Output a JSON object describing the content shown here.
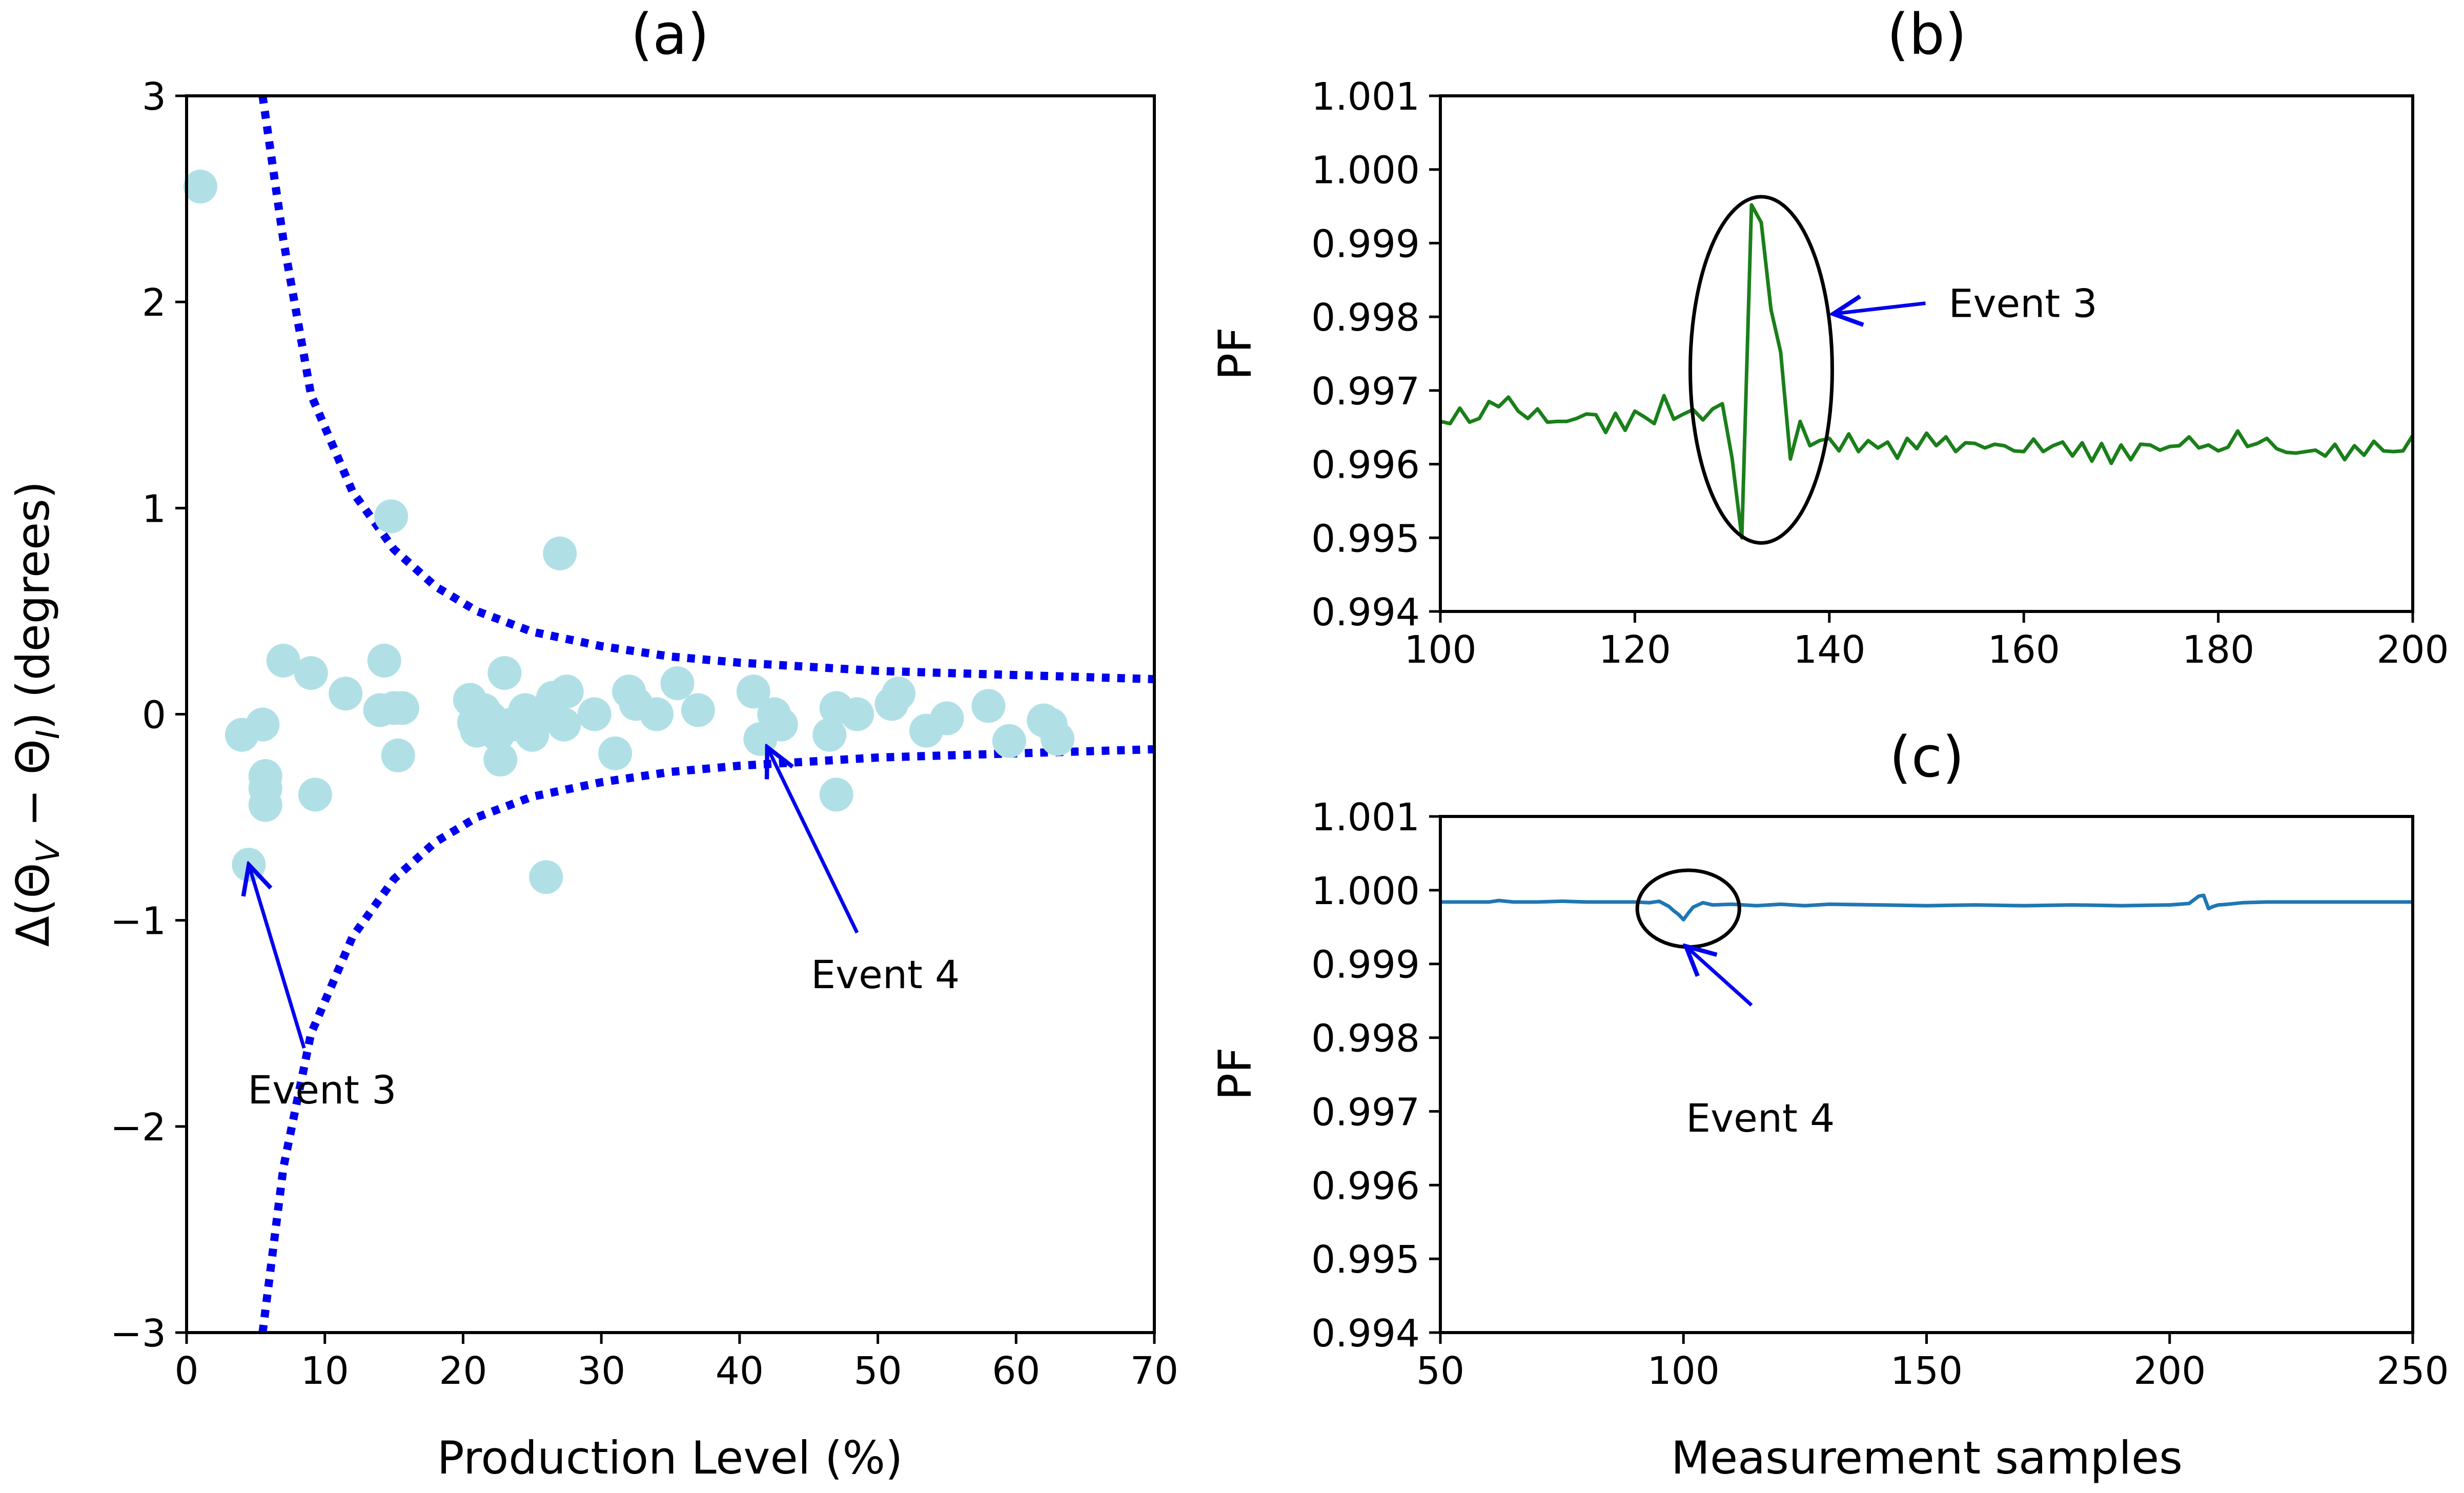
{
  "chart_data": [
    {
      "id": "a",
      "type": "scatter",
      "title": "(a)",
      "xlabel": "Production Level (%)",
      "ylabel": "Δ(Θ_V − Θ_I) (degrees)",
      "ylabel_parts": {
        "lead": "Δ(Θ",
        "sub_v": "V",
        "mid": " − Θ",
        "sub_i": "I",
        "tail": ") (degrees)"
      },
      "xlim": [
        0,
        70
      ],
      "ylim": [
        -3,
        3
      ],
      "xticks": [
        0,
        10,
        20,
        30,
        40,
        50,
        60,
        70
      ],
      "xtick_labels": [
        "0",
        "10",
        "20",
        "30",
        "40",
        "50",
        "60",
        "70"
      ],
      "yticks": [
        -3,
        -2,
        -1,
        0,
        1,
        2,
        3
      ],
      "ytick_labels": [
        "−3",
        "−2",
        "−1",
        "0",
        "1",
        "2",
        "3"
      ],
      "point_color": "#b0e0e6",
      "points": [
        [
          1,
          2.56
        ],
        [
          4,
          -0.1
        ],
        [
          4.5,
          -0.73
        ],
        [
          5.5,
          -0.05
        ],
        [
          5.7,
          -0.3
        ],
        [
          5.7,
          -0.36
        ],
        [
          5.7,
          -0.44
        ],
        [
          7,
          0.26
        ],
        [
          9,
          0.2
        ],
        [
          9.3,
          -0.39
        ],
        [
          11.5,
          0.1
        ],
        [
          14,
          0.02
        ],
        [
          14.3,
          0.26
        ],
        [
          14.8,
          0.96
        ],
        [
          15,
          0.03
        ],
        [
          15.3,
          -0.2
        ],
        [
          15.6,
          0.03
        ],
        [
          20.5,
          0.07
        ],
        [
          20.8,
          -0.04
        ],
        [
          21,
          -0.08
        ],
        [
          21.5,
          0.02
        ],
        [
          22,
          -0.02
        ],
        [
          22.5,
          -0.1
        ],
        [
          22.7,
          -0.22
        ],
        [
          23,
          0.2
        ],
        [
          23.5,
          -0.05
        ],
        [
          24,
          -0.05
        ],
        [
          24.5,
          0.02
        ],
        [
          25,
          -0.1
        ],
        [
          25.5,
          0.0
        ],
        [
          26,
          -0.79
        ],
        [
          26.5,
          0.08
        ],
        [
          27,
          0.78
        ],
        [
          27.3,
          -0.05
        ],
        [
          27.5,
          0.11
        ],
        [
          29.5,
          0.0
        ],
        [
          31,
          -0.19
        ],
        [
          32,
          0.11
        ],
        [
          32.5,
          0.05
        ],
        [
          34,
          0.0
        ],
        [
          35.5,
          0.15
        ],
        [
          37,
          0.02
        ],
        [
          41,
          0.11
        ],
        [
          41.5,
          -0.12
        ],
        [
          42.5,
          0.0
        ],
        [
          43,
          -0.05
        ],
        [
          46.5,
          -0.1
        ],
        [
          47,
          0.03
        ],
        [
          47,
          -0.39
        ],
        [
          48.5,
          0.0
        ],
        [
          51,
          0.05
        ],
        [
          51.5,
          0.1
        ],
        [
          53.5,
          -0.08
        ],
        [
          55,
          -0.02
        ],
        [
          58,
          0.04
        ],
        [
          59.5,
          -0.13
        ],
        [
          62,
          -0.03
        ],
        [
          62.5,
          -0.05
        ],
        [
          63,
          -0.12
        ]
      ],
      "bound_color": "#0000ee",
      "bound_upper": [
        [
          5.5,
          3.0
        ],
        [
          7,
          2.3
        ],
        [
          9,
          1.55
        ],
        [
          12,
          1.08
        ],
        [
          15,
          0.8
        ],
        [
          18,
          0.62
        ],
        [
          21,
          0.5
        ],
        [
          25,
          0.4
        ],
        [
          30,
          0.33
        ],
        [
          35,
          0.28
        ],
        [
          40,
          0.25
        ],
        [
          45,
          0.23
        ],
        [
          50,
          0.21
        ],
        [
          55,
          0.2
        ],
        [
          60,
          0.19
        ],
        [
          65,
          0.18
        ],
        [
          70,
          0.17
        ]
      ],
      "bound_lower": [
        [
          5.5,
          -3.0
        ],
        [
          7,
          -2.2
        ],
        [
          9,
          -1.55
        ],
        [
          12,
          -1.08
        ],
        [
          15,
          -0.8
        ],
        [
          18,
          -0.62
        ],
        [
          21,
          -0.5
        ],
        [
          25,
          -0.4
        ],
        [
          30,
          -0.33
        ],
        [
          35,
          -0.28
        ],
        [
          40,
          -0.25
        ],
        [
          45,
          -0.23
        ],
        [
          50,
          -0.21
        ],
        [
          55,
          -0.2
        ],
        [
          60,
          -0.19
        ],
        [
          65,
          -0.18
        ],
        [
          70,
          -0.17
        ]
      ],
      "annotations": [
        {
          "text": "Event 3",
          "target": [
            4.5,
            -0.73
          ],
          "text_anchor": [
            8.5,
            -1.62
          ]
        },
        {
          "text": "Event 4",
          "target": [
            42,
            -0.16
          ],
          "text_anchor": [
            48.5,
            -1.06
          ]
        }
      ]
    },
    {
      "id": "b",
      "type": "line",
      "title": "(b)",
      "xlabel": "",
      "ylabel": "PF",
      "xlim": [
        100,
        200
      ],
      "ylim": [
        0.994,
        1.001
      ],
      "xticks": [
        100,
        120,
        140,
        160,
        180,
        200
      ],
      "xtick_labels": [
        "100",
        "120",
        "140",
        "160",
        "180",
        "200"
      ],
      "yticks": [
        0.994,
        0.995,
        0.996,
        0.997,
        0.998,
        0.999,
        1.0,
        1.001
      ],
      "ytick_labels": [
        "0.994",
        "0.995",
        "0.996",
        "0.997",
        "0.998",
        "0.999",
        "1.000",
        "1.001"
      ],
      "line_color": "#1a7f1a",
      "x": [
        100,
        101,
        102,
        103,
        104,
        105,
        106,
        107,
        108,
        109,
        110,
        111,
        112,
        113,
        114,
        115,
        116,
        117,
        118,
        119,
        120,
        121,
        122,
        123,
        124,
        125,
        126,
        127,
        128,
        129,
        130,
        131,
        132,
        133,
        134,
        135,
        136,
        137,
        138,
        139,
        140,
        141,
        142,
        143,
        144,
        145,
        146,
        147,
        148,
        149,
        150,
        151,
        152,
        153,
        154,
        155,
        156,
        157,
        158,
        159,
        160,
        161,
        162,
        163,
        164,
        165,
        166,
        167,
        168,
        169,
        170,
        171,
        172,
        173,
        174,
        175,
        176,
        177,
        178,
        179,
        180,
        181,
        182,
        183,
        184,
        185,
        186,
        187,
        188,
        189,
        190,
        191,
        192,
        193,
        194,
        195,
        196,
        197,
        198,
        199,
        200
      ],
      "values": [
        0.99658,
        0.99655,
        0.99676,
        0.99657,
        0.99662,
        0.99685,
        0.99678,
        0.99691,
        0.99672,
        0.99662,
        0.99675,
        0.99657,
        0.99658,
        0.99658,
        0.99662,
        0.99668,
        0.99667,
        0.99643,
        0.99669,
        0.99646,
        0.99672,
        0.99664,
        0.99655,
        0.99693,
        0.99661,
        0.99668,
        0.99674,
        0.9966,
        0.99675,
        0.99682,
        0.99608,
        0.995,
        0.99952,
        0.99928,
        0.9981,
        0.99752,
        0.99607,
        0.99658,
        0.99625,
        0.99632,
        0.99635,
        0.99618,
        0.99641,
        0.99617,
        0.99632,
        0.99622,
        0.9963,
        0.99608,
        0.99635,
        0.99621,
        0.99642,
        0.99625,
        0.99637,
        0.99617,
        0.99629,
        0.99628,
        0.99622,
        0.99627,
        0.99625,
        0.99618,
        0.99617,
        0.99634,
        0.99617,
        0.99625,
        0.9963,
        0.99611,
        0.99629,
        0.99604,
        0.99628,
        0.99601,
        0.99626,
        0.99606,
        0.99627,
        0.99626,
        0.99619,
        0.99624,
        0.99625,
        0.99637,
        0.99622,
        0.99626,
        0.99618,
        0.99623,
        0.99645,
        0.99624,
        0.99628,
        0.99635,
        0.99621,
        0.99616,
        0.99615,
        0.99617,
        0.99619,
        0.99611,
        0.99627,
        0.99606,
        0.99625,
        0.99612,
        0.99631,
        0.99618,
        0.99617,
        0.99618,
        0.99639
      ],
      "annotation": {
        "text": "Event 3",
        "ellipse_center": [
          133,
          0.99728
        ],
        "ellipse_radii": [
          7.3,
          0.00235
        ],
        "target": [
          140.4,
          0.99804
        ],
        "text_anchor": [
          152,
          0.99815
        ]
      }
    },
    {
      "id": "c",
      "type": "line",
      "title": "(c)",
      "xlabel": "Measurement samples",
      "ylabel": "PF",
      "xlim": [
        50,
        250
      ],
      "ylim": [
        0.994,
        1.001
      ],
      "xticks": [
        50,
        100,
        150,
        200,
        250
      ],
      "xtick_labels": [
        "50",
        "100",
        "150",
        "200",
        "250"
      ],
      "yticks": [
        0.994,
        0.995,
        0.996,
        0.997,
        0.998,
        0.999,
        1.0,
        1.001
      ],
      "ytick_labels": [
        "0.994",
        "0.995",
        "0.996",
        "0.997",
        "0.998",
        "0.999",
        "1.000",
        "1.001"
      ],
      "line_color": "#1f77b4",
      "x": [
        50,
        55,
        60,
        62,
        65,
        70,
        75,
        80,
        85,
        90,
        93,
        95,
        97,
        98,
        99,
        100,
        101,
        102,
        104,
        106,
        110,
        115,
        120,
        125,
        130,
        140,
        150,
        160,
        170,
        180,
        190,
        200,
        204,
        206,
        207,
        208,
        209,
        210,
        212,
        215,
        220,
        230,
        240,
        250
      ],
      "values": [
        0.99984,
        0.99984,
        0.99984,
        0.99986,
        0.99984,
        0.99984,
        0.99985,
        0.99984,
        0.99984,
        0.99984,
        0.99983,
        0.99985,
        0.99978,
        0.99972,
        0.99967,
        0.9996,
        0.99969,
        0.99977,
        0.99983,
        0.9998,
        0.99981,
        0.99979,
        0.99981,
        0.99979,
        0.99981,
        0.9998,
        0.99979,
        0.9998,
        0.99979,
        0.9998,
        0.99979,
        0.9998,
        0.99982,
        0.99992,
        0.99993,
        0.99975,
        0.99978,
        0.9998,
        0.99981,
        0.99983,
        0.99984,
        0.99984,
        0.99984,
        0.99984
      ],
      "annotation": {
        "text": "Event 4",
        "ellipse_center": [
          101,
          0.99975
        ],
        "ellipse_radii": [
          10.5,
          0.00052
        ],
        "target": [
          100.5,
          0.99924
        ],
        "arrow_tail": [
          114,
          0.99844
        ],
        "text_anchor": [
          100,
          0.99683
        ]
      }
    }
  ]
}
